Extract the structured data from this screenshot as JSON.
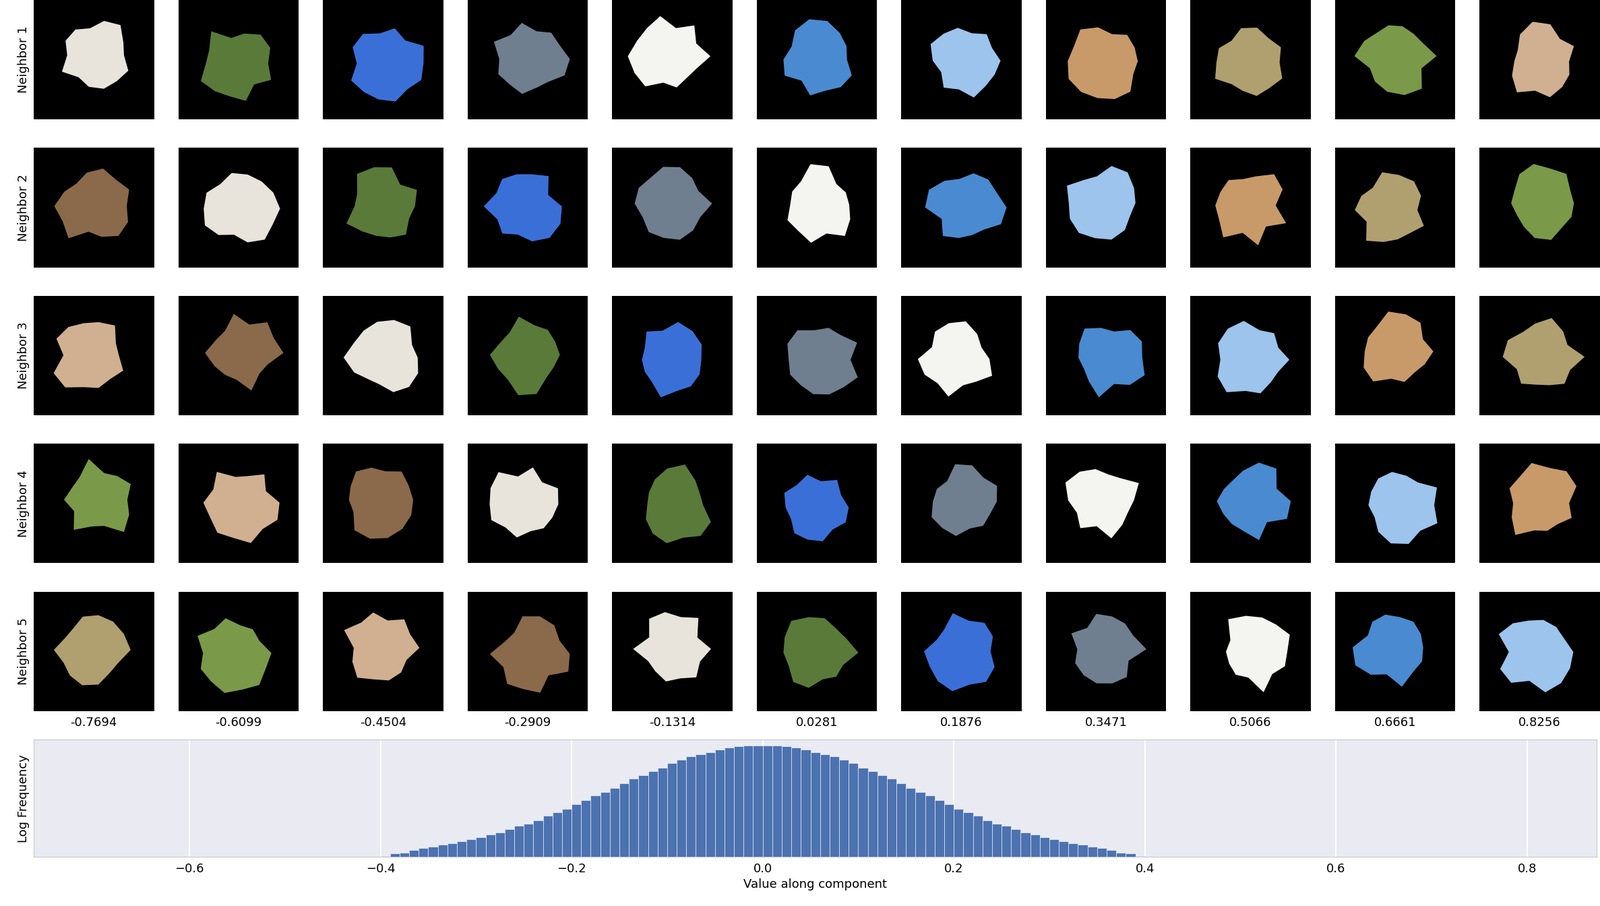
{
  "image_grid": {
    "row_labels": [
      "Neighbor 1",
      "Neighbor 2",
      "Neighbor 3",
      "Neighbor 4",
      "Neighbor 5"
    ],
    "column_values": [
      -0.7694,
      -0.6099,
      -0.4504,
      -0.2909,
      -0.1314,
      0.0281,
      0.1876,
      0.3471,
      0.5066,
      0.6661,
      0.8256
    ]
  },
  "chart_data": {
    "type": "histogram",
    "xlabel": "Value along component",
    "ylabel": "Log Frequency",
    "bins": [
      -0.4,
      -0.39,
      -0.38,
      -0.37,
      -0.36,
      -0.35,
      -0.34,
      -0.33,
      -0.32,
      -0.31,
      -0.3,
      -0.29,
      -0.28,
      -0.27,
      -0.26,
      -0.25,
      -0.24,
      -0.23,
      -0.22,
      -0.21,
      -0.2,
      -0.19,
      -0.18,
      -0.17,
      -0.16,
      -0.15,
      -0.14,
      -0.13,
      -0.12,
      -0.11,
      -0.1,
      -0.09,
      -0.08,
      -0.07,
      -0.06,
      -0.05,
      -0.04,
      -0.03,
      -0.02,
      -0.01,
      0.0,
      0.01,
      0.02,
      0.03,
      0.04,
      0.05,
      0.06,
      0.07,
      0.08,
      0.09,
      0.1,
      0.11,
      0.12,
      0.13,
      0.14,
      0.15,
      0.16,
      0.17,
      0.18,
      0.19,
      0.2,
      0.21,
      0.22,
      0.23,
      0.24,
      0.25,
      0.26,
      0.27,
      0.28,
      0.29,
      0.3,
      0.31,
      0.32,
      0.33,
      0.34,
      0.35,
      0.36,
      0.37,
      0.38,
      0.39,
      0.4
    ],
    "counts": [
      0.01,
      0.03,
      0.04,
      0.06,
      0.08,
      0.09,
      0.11,
      0.12,
      0.14,
      0.16,
      0.18,
      0.2,
      0.22,
      0.25,
      0.28,
      0.3,
      0.33,
      0.37,
      0.4,
      0.43,
      0.47,
      0.51,
      0.55,
      0.58,
      0.62,
      0.66,
      0.7,
      0.73,
      0.77,
      0.8,
      0.84,
      0.87,
      0.9,
      0.92,
      0.94,
      0.96,
      0.98,
      0.99,
      1.0,
      1.0,
      1.0,
      1.0,
      0.99,
      0.98,
      0.96,
      0.94,
      0.92,
      0.9,
      0.87,
      0.84,
      0.8,
      0.77,
      0.73,
      0.7,
      0.66,
      0.62,
      0.58,
      0.55,
      0.51,
      0.47,
      0.43,
      0.4,
      0.37,
      0.33,
      0.3,
      0.28,
      0.25,
      0.22,
      0.2,
      0.18,
      0.16,
      0.14,
      0.12,
      0.11,
      0.09,
      0.08,
      0.06,
      0.04,
      0.03,
      0.01
    ],
    "color": "#4c72b0",
    "xlim": [
      -0.763,
      0.873
    ],
    "xticks": [
      {
        "value": -0.6,
        "label": "−0.6"
      },
      {
        "value": -0.4,
        "label": "−0.4"
      },
      {
        "value": -0.2,
        "label": "−0.2"
      },
      0.0,
      0.2,
      0.4,
      0.6,
      0.8
    ],
    "ylim": [
      0,
      1.05
    ],
    "grid": true,
    "tick_labels": "x"
  }
}
